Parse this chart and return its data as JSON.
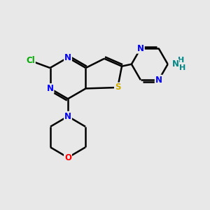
{
  "bg_color": "#e8e8e8",
  "bond_color": "#000000",
  "bond_lw": 1.8,
  "atom_colors": {
    "N": "#0000ff",
    "S": "#ccaa00",
    "O": "#ff0000",
    "Cl": "#00aa00",
    "NH2": "#008888",
    "C": "#000000"
  },
  "font_size": 8.5
}
